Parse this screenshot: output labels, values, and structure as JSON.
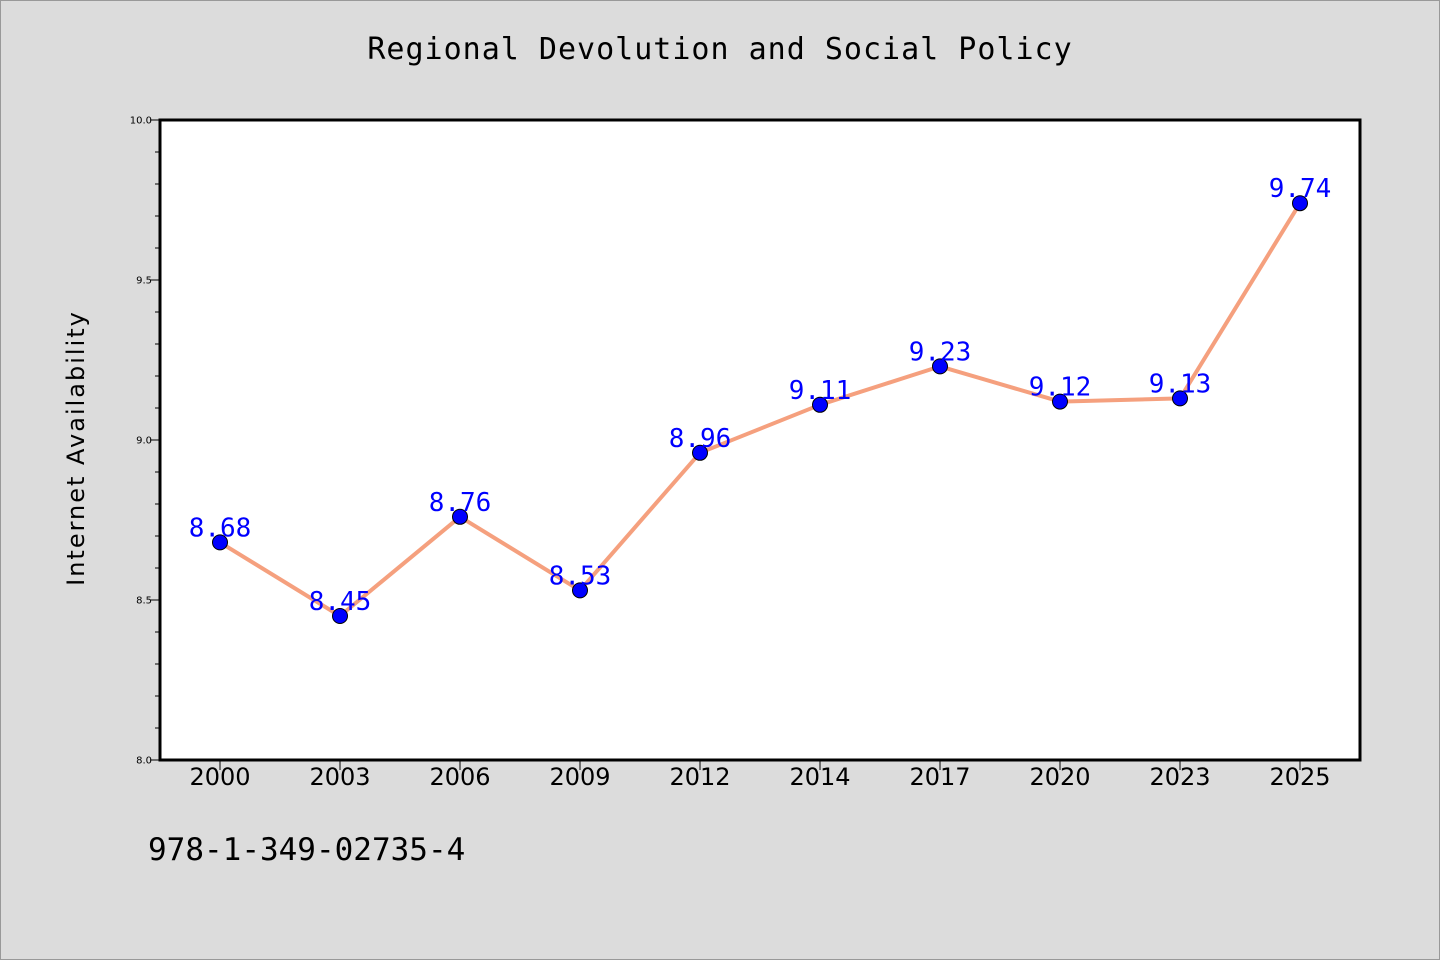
{
  "page": {
    "identifier": "978-1-349-02735-4"
  },
  "chart_data": {
    "type": "line",
    "title": "Regional Devolution and Social Policy",
    "xlabel": "",
    "ylabel": "Internet Availability",
    "categories": [
      "2000",
      "2003",
      "2006",
      "2009",
      "2012",
      "2014",
      "2017",
      "2020",
      "2023",
      "2025"
    ],
    "series": [
      {
        "values": [
          8.68,
          8.45,
          8.76,
          8.53,
          8.96,
          9.11,
          9.23,
          9.12,
          9.13,
          9.74
        ],
        "data_labels": [
          "8.68",
          "8.45",
          "8.76",
          "8.53",
          "8.96",
          "9.11",
          "9.23",
          "9.12",
          "9.13",
          "9.74"
        ]
      }
    ],
    "ylim": [
      8.0,
      10.0
    ],
    "yticks": [
      "8.0",
      "8.5",
      "9.0",
      "9.5",
      "10.0"
    ],
    "grid": false,
    "colors": {
      "line": "#f5a07e",
      "marker": "#0000ff",
      "data_label": "#0000ff",
      "background": "#dcdcdc",
      "plot_background": "#ffffff"
    }
  }
}
